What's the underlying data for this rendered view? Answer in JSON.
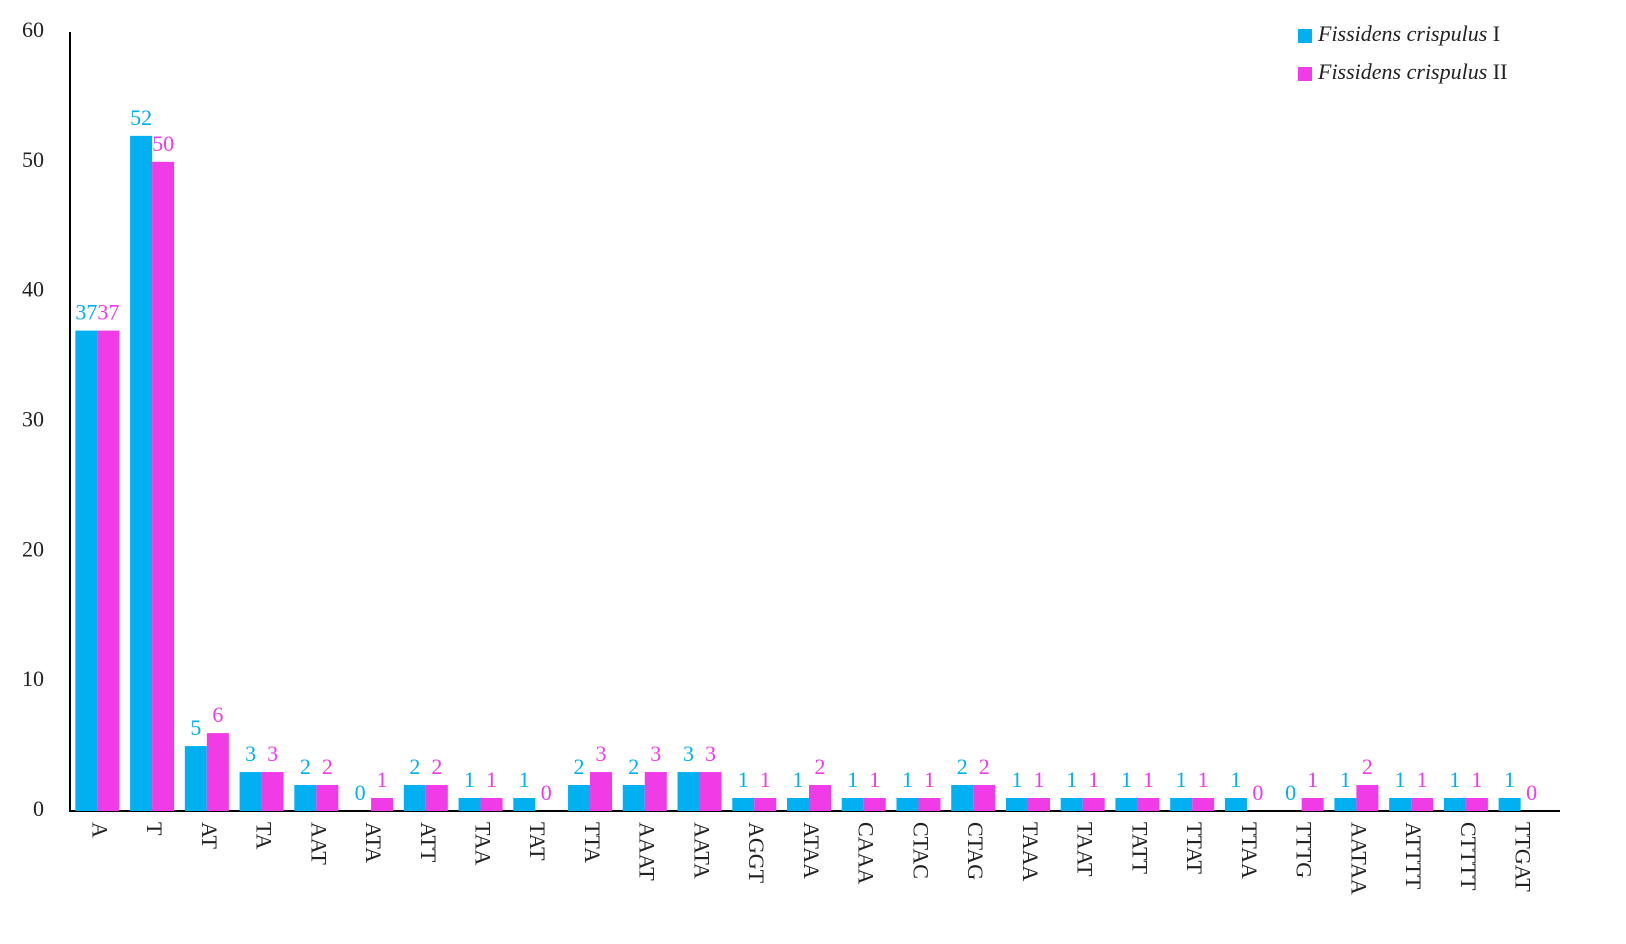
{
  "chart_data": {
    "type": "bar",
    "categories": [
      "A",
      "T",
      "AT",
      "TA",
      "AAT",
      "ATA",
      "ATT",
      "TAA",
      "TAT",
      "TTA",
      "AAAT",
      "AATA",
      "AGGT",
      "ATAA",
      "CAAA",
      "CTAC",
      "CTAG",
      "TAAA",
      "TAAT",
      "TATT",
      "TTAT",
      "TTAA",
      "TTTG",
      "AATAA",
      "ATTTT",
      "CTTTT",
      "TTGAT"
    ],
    "series": [
      {
        "name": "Fissidens crispulus I",
        "color": "#00b0f0",
        "values": [
          37,
          52,
          5,
          3,
          2,
          0,
          2,
          1,
          1,
          2,
          2,
          3,
          1,
          1,
          1,
          1,
          2,
          1,
          1,
          1,
          1,
          1,
          0,
          1,
          1,
          1,
          1
        ]
      },
      {
        "name": "Fissidens crispulus II",
        "color": "#f03ce6",
        "values": [
          37,
          50,
          6,
          3,
          2,
          1,
          2,
          1,
          0,
          3,
          3,
          3,
          1,
          2,
          1,
          1,
          2,
          1,
          1,
          1,
          1,
          0,
          1,
          2,
          1,
          1,
          0
        ]
      }
    ],
    "ylim": [
      0,
      60
    ],
    "yticks": [
      0,
      10,
      20,
      30,
      40,
      50,
      60
    ],
    "grid": false,
    "legend": "top-right"
  }
}
